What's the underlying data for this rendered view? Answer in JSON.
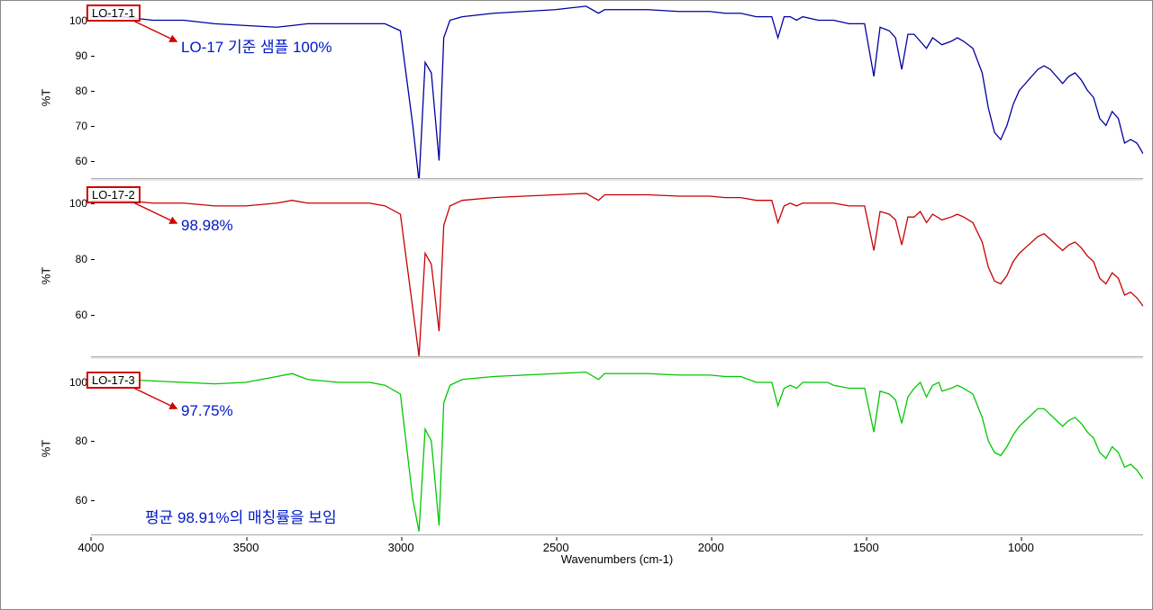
{
  "chart": {
    "type": "line",
    "x_axis_label": "Wavenumbers (cm-1)",
    "y_axis_label": "%T",
    "x_range": [
      4000,
      600
    ],
    "x_ticks": [
      4000,
      3500,
      3000,
      2500,
      2000,
      1500,
      1000
    ],
    "background_color": "#ffffff",
    "grid_color": "#e8e8e8",
    "axis_color": "#888888",
    "tick_fontsize": 12,
    "label_fontsize": 13,
    "panels": [
      {
        "sample_id": "LO-17-1",
        "line_color": "#0000a0",
        "y_ticks": [
          60,
          70,
          80,
          90,
          100
        ],
        "y_range": [
          55,
          105
        ],
        "annotation": "LO-17 기준 샘플 100%",
        "annotation_color": "#0018c8",
        "arrow_color": "#d00000",
        "data_points": [
          [
            4000,
            101
          ],
          [
            3900,
            101
          ],
          [
            3800,
            100
          ],
          [
            3700,
            100
          ],
          [
            3600,
            99
          ],
          [
            3500,
            98.5
          ],
          [
            3400,
            98
          ],
          [
            3350,
            98.5
          ],
          [
            3300,
            99
          ],
          [
            3200,
            99
          ],
          [
            3100,
            99
          ],
          [
            3050,
            99
          ],
          [
            3000,
            97
          ],
          [
            2960,
            70
          ],
          [
            2940,
            54
          ],
          [
            2920,
            88
          ],
          [
            2900,
            85
          ],
          [
            2875,
            60
          ],
          [
            2860,
            95
          ],
          [
            2840,
            100
          ],
          [
            2800,
            101
          ],
          [
            2700,
            102
          ],
          [
            2600,
            102.5
          ],
          [
            2500,
            103
          ],
          [
            2400,
            104
          ],
          [
            2360,
            102
          ],
          [
            2340,
            103
          ],
          [
            2300,
            103
          ],
          [
            2200,
            103
          ],
          [
            2100,
            102.5
          ],
          [
            2000,
            102.5
          ],
          [
            1950,
            102
          ],
          [
            1900,
            102
          ],
          [
            1850,
            101
          ],
          [
            1800,
            101
          ],
          [
            1780,
            95
          ],
          [
            1760,
            101
          ],
          [
            1740,
            101
          ],
          [
            1720,
            100
          ],
          [
            1700,
            101
          ],
          [
            1650,
            100
          ],
          [
            1600,
            100
          ],
          [
            1550,
            99
          ],
          [
            1500,
            99
          ],
          [
            1470,
            84
          ],
          [
            1450,
            98
          ],
          [
            1420,
            97
          ],
          [
            1400,
            95
          ],
          [
            1380,
            86
          ],
          [
            1360,
            96
          ],
          [
            1340,
            96
          ],
          [
            1300,
            92
          ],
          [
            1280,
            95
          ],
          [
            1250,
            93
          ],
          [
            1220,
            94
          ],
          [
            1200,
            95
          ],
          [
            1180,
            94
          ],
          [
            1150,
            92
          ],
          [
            1120,
            85
          ],
          [
            1100,
            75
          ],
          [
            1080,
            68
          ],
          [
            1060,
            66
          ],
          [
            1040,
            70
          ],
          [
            1020,
            76
          ],
          [
            1000,
            80
          ],
          [
            980,
            82
          ],
          [
            960,
            84
          ],
          [
            940,
            86
          ],
          [
            920,
            87
          ],
          [
            900,
            86
          ],
          [
            880,
            84
          ],
          [
            860,
            82
          ],
          [
            840,
            84
          ],
          [
            820,
            85
          ],
          [
            800,
            83
          ],
          [
            780,
            80
          ],
          [
            760,
            78
          ],
          [
            740,
            72
          ],
          [
            720,
            70
          ],
          [
            700,
            74
          ],
          [
            680,
            72
          ],
          [
            660,
            65
          ],
          [
            640,
            66
          ],
          [
            620,
            65
          ],
          [
            600,
            62
          ]
        ]
      },
      {
        "sample_id": "LO-17-2",
        "line_color": "#c80000",
        "y_ticks": [
          60,
          80,
          100
        ],
        "y_range": [
          45,
          108
        ],
        "annotation": "98.98%",
        "annotation_color": "#0018c8",
        "arrow_color": "#d00000",
        "data_points": [
          [
            4000,
            101
          ],
          [
            3900,
            101
          ],
          [
            3800,
            100
          ],
          [
            3700,
            100
          ],
          [
            3600,
            99
          ],
          [
            3500,
            99
          ],
          [
            3400,
            100
          ],
          [
            3350,
            101
          ],
          [
            3300,
            100
          ],
          [
            3200,
            100
          ],
          [
            3100,
            100
          ],
          [
            3050,
            99
          ],
          [
            3000,
            96
          ],
          [
            2960,
            62
          ],
          [
            2940,
            45
          ],
          [
            2920,
            82
          ],
          [
            2900,
            78
          ],
          [
            2875,
            54
          ],
          [
            2860,
            92
          ],
          [
            2840,
            99
          ],
          [
            2800,
            101
          ],
          [
            2700,
            102
          ],
          [
            2600,
            102.5
          ],
          [
            2500,
            103
          ],
          [
            2400,
            103.5
          ],
          [
            2360,
            101
          ],
          [
            2340,
            103
          ],
          [
            2300,
            103
          ],
          [
            2200,
            103
          ],
          [
            2100,
            102.5
          ],
          [
            2000,
            102.5
          ],
          [
            1950,
            102
          ],
          [
            1900,
            102
          ],
          [
            1850,
            101
          ],
          [
            1800,
            101
          ],
          [
            1780,
            93
          ],
          [
            1760,
            99
          ],
          [
            1740,
            100
          ],
          [
            1720,
            99
          ],
          [
            1700,
            100
          ],
          [
            1650,
            100
          ],
          [
            1600,
            100
          ],
          [
            1550,
            99
          ],
          [
            1500,
            99
          ],
          [
            1470,
            83
          ],
          [
            1450,
            97
          ],
          [
            1420,
            96
          ],
          [
            1400,
            94
          ],
          [
            1380,
            85
          ],
          [
            1360,
            95
          ],
          [
            1340,
            95
          ],
          [
            1320,
            97
          ],
          [
            1300,
            93
          ],
          [
            1280,
            96
          ],
          [
            1250,
            94
          ],
          [
            1220,
            95
          ],
          [
            1200,
            96
          ],
          [
            1180,
            95
          ],
          [
            1150,
            93
          ],
          [
            1120,
            86
          ],
          [
            1100,
            77
          ],
          [
            1080,
            72
          ],
          [
            1060,
            71
          ],
          [
            1040,
            74
          ],
          [
            1020,
            79
          ],
          [
            1000,
            82
          ],
          [
            980,
            84
          ],
          [
            960,
            86
          ],
          [
            940,
            88
          ],
          [
            920,
            89
          ],
          [
            900,
            87
          ],
          [
            880,
            85
          ],
          [
            860,
            83
          ],
          [
            840,
            85
          ],
          [
            820,
            86
          ],
          [
            800,
            84
          ],
          [
            780,
            81
          ],
          [
            760,
            79
          ],
          [
            740,
            73
          ],
          [
            720,
            71
          ],
          [
            700,
            75
          ],
          [
            680,
            73
          ],
          [
            660,
            67
          ],
          [
            640,
            68
          ],
          [
            620,
            66
          ],
          [
            600,
            63
          ]
        ]
      },
      {
        "sample_id": "LO-17-3",
        "line_color": "#00c800",
        "y_ticks": [
          60,
          80,
          100
        ],
        "y_range": [
          48,
          108
        ],
        "annotation": "97.75%",
        "annotation_color": "#0018c8",
        "arrow_color": "#d00000",
        "footer_annotation": "평균 98.91%의 매칭률을 보임",
        "data_points": [
          [
            4000,
            101
          ],
          [
            3900,
            101
          ],
          [
            3800,
            100.5
          ],
          [
            3700,
            100
          ],
          [
            3600,
            99.5
          ],
          [
            3500,
            100
          ],
          [
            3400,
            102
          ],
          [
            3350,
            103
          ],
          [
            3300,
            101
          ],
          [
            3200,
            100
          ],
          [
            3100,
            100
          ],
          [
            3050,
            99
          ],
          [
            3000,
            96
          ],
          [
            2960,
            60
          ],
          [
            2940,
            49
          ],
          [
            2920,
            84
          ],
          [
            2900,
            80
          ],
          [
            2875,
            51
          ],
          [
            2860,
            93
          ],
          [
            2840,
            99
          ],
          [
            2800,
            101
          ],
          [
            2700,
            102
          ],
          [
            2600,
            102.5
          ],
          [
            2500,
            103
          ],
          [
            2400,
            103.5
          ],
          [
            2360,
            101
          ],
          [
            2340,
            103
          ],
          [
            2300,
            103
          ],
          [
            2200,
            103
          ],
          [
            2100,
            102.5
          ],
          [
            2000,
            102.5
          ],
          [
            1950,
            102
          ],
          [
            1900,
            102
          ],
          [
            1850,
            100
          ],
          [
            1800,
            100
          ],
          [
            1780,
            92
          ],
          [
            1760,
            98
          ],
          [
            1740,
            99
          ],
          [
            1720,
            98
          ],
          [
            1700,
            100
          ],
          [
            1650,
            100
          ],
          [
            1620,
            100
          ],
          [
            1600,
            99
          ],
          [
            1550,
            98
          ],
          [
            1500,
            98
          ],
          [
            1470,
            83
          ],
          [
            1450,
            97
          ],
          [
            1420,
            96
          ],
          [
            1400,
            94
          ],
          [
            1380,
            86
          ],
          [
            1360,
            95
          ],
          [
            1340,
            98
          ],
          [
            1320,
            100
          ],
          [
            1300,
            95
          ],
          [
            1280,
            99
          ],
          [
            1260,
            100
          ],
          [
            1250,
            97
          ],
          [
            1220,
            98
          ],
          [
            1200,
            99
          ],
          [
            1180,
            98
          ],
          [
            1150,
            96
          ],
          [
            1120,
            88
          ],
          [
            1100,
            80
          ],
          [
            1080,
            76
          ],
          [
            1060,
            75
          ],
          [
            1040,
            78
          ],
          [
            1020,
            82
          ],
          [
            1000,
            85
          ],
          [
            980,
            87
          ],
          [
            960,
            89
          ],
          [
            940,
            91
          ],
          [
            920,
            91
          ],
          [
            900,
            89
          ],
          [
            880,
            87
          ],
          [
            860,
            85
          ],
          [
            840,
            87
          ],
          [
            820,
            88
          ],
          [
            800,
            86
          ],
          [
            780,
            83
          ],
          [
            760,
            81
          ],
          [
            740,
            76
          ],
          [
            720,
            74
          ],
          [
            700,
            78
          ],
          [
            680,
            76
          ],
          [
            660,
            71
          ],
          [
            640,
            72
          ],
          [
            620,
            70
          ],
          [
            600,
            67
          ]
        ]
      }
    ]
  }
}
